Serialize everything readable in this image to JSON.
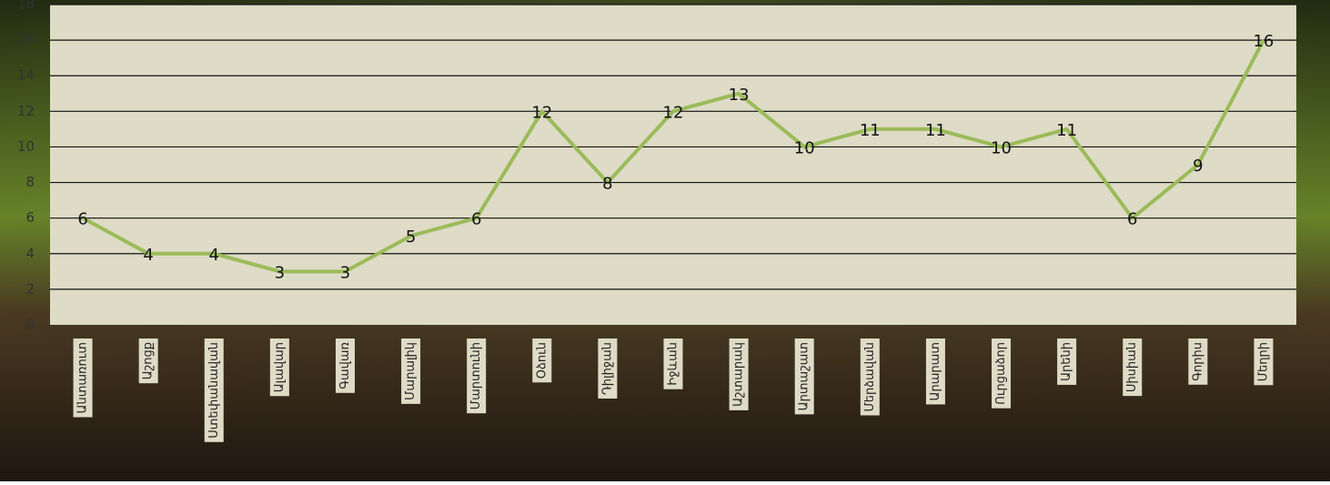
{
  "chart_data": {
    "type": "line",
    "categories": [
      "Անտառուտ",
      "Աշոցք",
      "Ստեփանավան",
      "Ալավար",
      "Գավառ",
      "Մարալիկ",
      "Մարտունի",
      "Օձուն",
      "Դիլիջան",
      "Իջևան",
      "Աշտարակ",
      "Արտաշատ",
      "Մերձավան",
      "Արարատ",
      "Ուրցաձոր",
      "Արենի",
      "Սիսիան",
      "Գորիս",
      "Մեղրի"
    ],
    "series": [
      {
        "color": "#9bbb59",
        "values": [
          6,
          4,
          4,
          3,
          3,
          5,
          6,
          12,
          8,
          12,
          13,
          10,
          11,
          11,
          10,
          11,
          6,
          9,
          16
        ]
      }
    ],
    "ylim": [
      0,
      18
    ],
    "yticks": [
      0,
      2,
      4,
      6,
      8,
      10,
      12,
      14,
      16,
      18
    ],
    "grid": true
  }
}
